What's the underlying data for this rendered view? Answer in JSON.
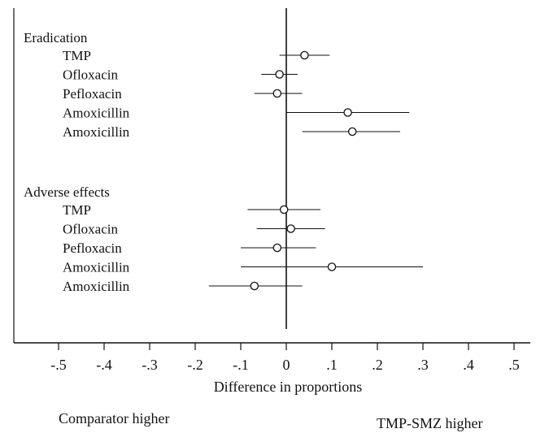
{
  "chart_data": {
    "type": "forest",
    "xlabel": "Difference in proportions",
    "xlim": [
      -0.58,
      0.52
    ],
    "ticks": [
      {
        "value": -0.5,
        "label": "-.5"
      },
      {
        "value": -0.4,
        "label": "-.4"
      },
      {
        "value": -0.3,
        "label": "-.3"
      },
      {
        "value": -0.2,
        "label": "-.2"
      },
      {
        "value": -0.1,
        "label": "-.1"
      },
      {
        "value": 0,
        "label": "0"
      },
      {
        "value": 0.1,
        "label": ".1"
      },
      {
        "value": 0.2,
        "label": ".2"
      },
      {
        "value": 0.3,
        "label": ".3"
      },
      {
        "value": 0.4,
        "label": ".4"
      },
      {
        "value": 0.5,
        "label": ".5"
      }
    ],
    "groups": [
      {
        "name": "Eradication",
        "rows": [
          {
            "label": "TMP",
            "estimate": 0.04,
            "lo": -0.015,
            "hi": 0.095
          },
          {
            "label": "Ofloxacin",
            "estimate": -0.015,
            "lo": -0.055,
            "hi": 0.025
          },
          {
            "label": "Pefloxacin",
            "estimate": -0.02,
            "lo": -0.07,
            "hi": 0.035
          },
          {
            "label": "Amoxicillin",
            "estimate": 0.135,
            "lo": 0.0,
            "hi": 0.27
          },
          {
            "label": "Amoxicillin",
            "estimate": 0.145,
            "lo": 0.035,
            "hi": 0.25
          }
        ]
      },
      {
        "name": "Adverse effects",
        "rows": [
          {
            "label": "TMP",
            "estimate": -0.005,
            "lo": -0.085,
            "hi": 0.075
          },
          {
            "label": "Ofloxacin",
            "estimate": 0.01,
            "lo": -0.065,
            "hi": 0.085
          },
          {
            "label": "Pefloxacin",
            "estimate": -0.02,
            "lo": -0.1,
            "hi": 0.065
          },
          {
            "label": "Amoxicillin",
            "estimate": 0.1,
            "lo": -0.1,
            "hi": 0.3
          },
          {
            "label": "Amoxicillin",
            "estimate": -0.07,
            "lo": -0.17,
            "hi": 0.035
          }
        ]
      }
    ],
    "left_annotation": "Comparator higher",
    "right_annotation": "TMP-SMZ higher"
  }
}
